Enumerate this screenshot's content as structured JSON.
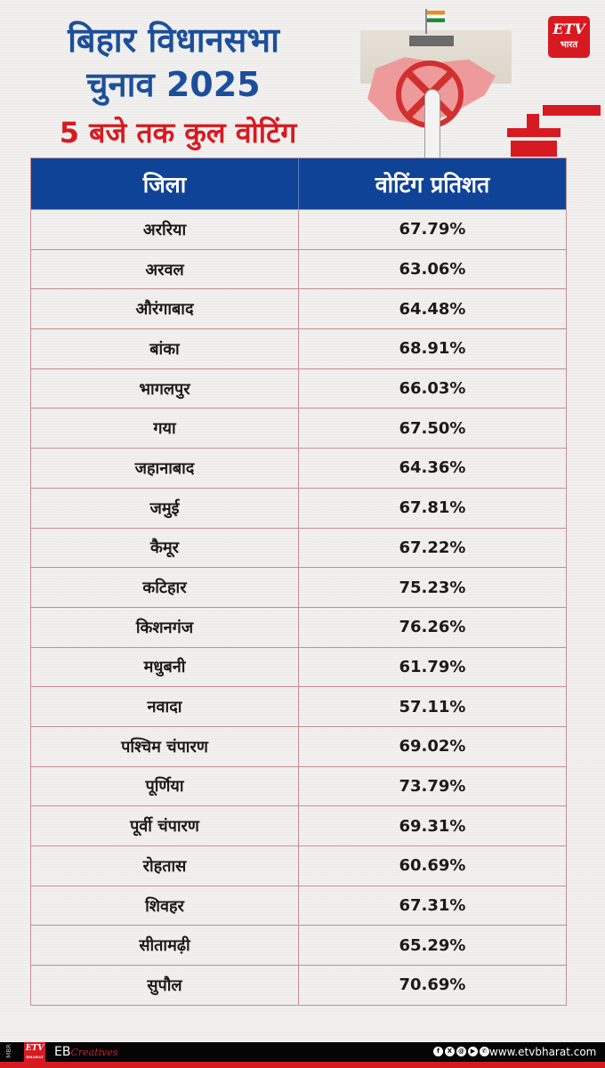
{
  "header": {
    "title_line1": "बिहार विधानसभा",
    "title_line2": "चुनाव 2025",
    "subtitle": "5 बजे तक कुल वोटिंग"
  },
  "logo": {
    "brand": "ETV",
    "label": "भारत",
    "color": "#d71a21"
  },
  "table": {
    "columns": [
      "जिला",
      "वोटिंग प्रतिशत"
    ],
    "header_color": "#0f4397",
    "rows": [
      {
        "district": "अररिया",
        "percent": "67.79%"
      },
      {
        "district": "अरवल",
        "percent": "63.06%"
      },
      {
        "district": "औरंगाबाद",
        "percent": "64.48%"
      },
      {
        "district": "बांका",
        "percent": "68.91%"
      },
      {
        "district": "भागलपुर",
        "percent": "66.03%"
      },
      {
        "district": "गया",
        "percent": "67.50%"
      },
      {
        "district": "जहानाबाद",
        "percent": "64.36%"
      },
      {
        "district": "जमुई",
        "percent": "67.81%"
      },
      {
        "district": "कैमूर",
        "percent": "67.22%"
      },
      {
        "district": "कटिहार",
        "percent": "75.23%"
      },
      {
        "district": "किशनगंज",
        "percent": "76.26%"
      },
      {
        "district": "मधुबनी",
        "percent": "61.79%"
      },
      {
        "district": "नवादा",
        "percent": "57.11%"
      },
      {
        "district": "पश्चिम चंपारण",
        "percent": "69.02%"
      },
      {
        "district": "पूर्णिया",
        "percent": "73.79%"
      },
      {
        "district": "पूर्वी चंपारण",
        "percent": "69.31%"
      },
      {
        "district": "रोहतास",
        "percent": "60.69%"
      },
      {
        "district": "शिवहर",
        "percent": "67.31%"
      },
      {
        "district": "सीतामढ़ी",
        "percent": "65.29%"
      },
      {
        "district": "सुपौल",
        "percent": "70.69%"
      }
    ]
  },
  "footer": {
    "mbr": "MBR",
    "logo_text": "ETV",
    "logo_sub": "BHARAT",
    "eb": "EB",
    "creatives": "Creatives",
    "social_icons": [
      "facebook-icon",
      "x-icon",
      "threads-icon",
      "youtube-icon",
      "whatsapp-icon"
    ],
    "social_glyphs": [
      "f",
      "X",
      "@",
      "▶",
      "✆"
    ],
    "website": "www.etvbharat.com"
  }
}
